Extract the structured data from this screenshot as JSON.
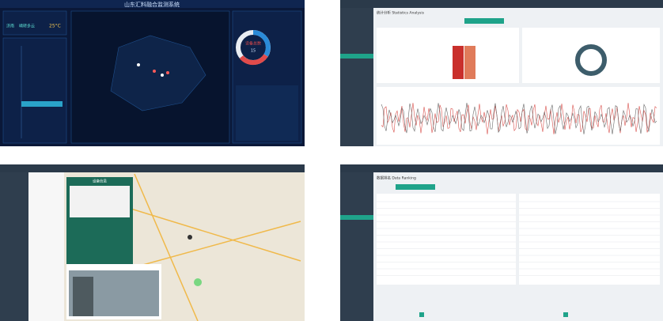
{
  "panel1": {
    "title": "山东汇料融合监测系统",
    "weather": {
      "city": "济南",
      "condition": "晴转多云",
      "temperature": "25°C"
    },
    "device_total_label": "设备总数",
    "device_total": "15"
  },
  "panel2": {
    "title": "统计分析 Statistics Analysis"
  },
  "panel3": {
    "popup_title": "设备信息"
  },
  "panel4": {
    "title": "数据排名 Data Ranking"
  }
}
